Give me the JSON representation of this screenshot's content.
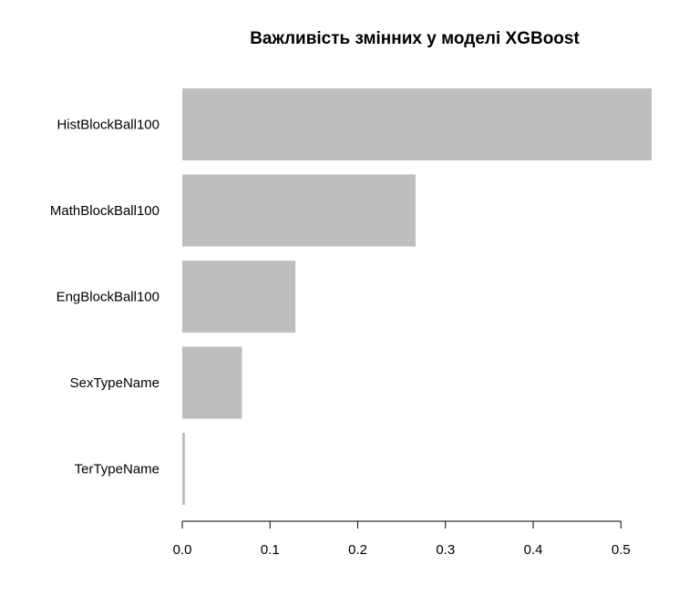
{
  "chart_data": {
    "type": "bar",
    "orientation": "horizontal",
    "title": "Важливість змінних у моделі XGBoost",
    "xlabel": "",
    "ylabel": "",
    "categories": [
      "HistBlockBall100",
      "MathBlockBall100",
      "EngBlockBall100",
      "SexTypeName",
      "TerTypeName"
    ],
    "values": [
      0.535,
      0.266,
      0.129,
      0.068,
      0.003
    ],
    "xlim": [
      0,
      0.535
    ],
    "xticks": [
      0.0,
      0.1,
      0.2,
      0.3,
      0.4,
      0.5
    ],
    "xtick_labels": [
      "0.0",
      "0.1",
      "0.2",
      "0.3",
      "0.4",
      "0.5"
    ],
    "grid": false,
    "legend": "none",
    "bar_color": "#bebebe",
    "axis_color": "#000000",
    "text_color": "#000000"
  }
}
